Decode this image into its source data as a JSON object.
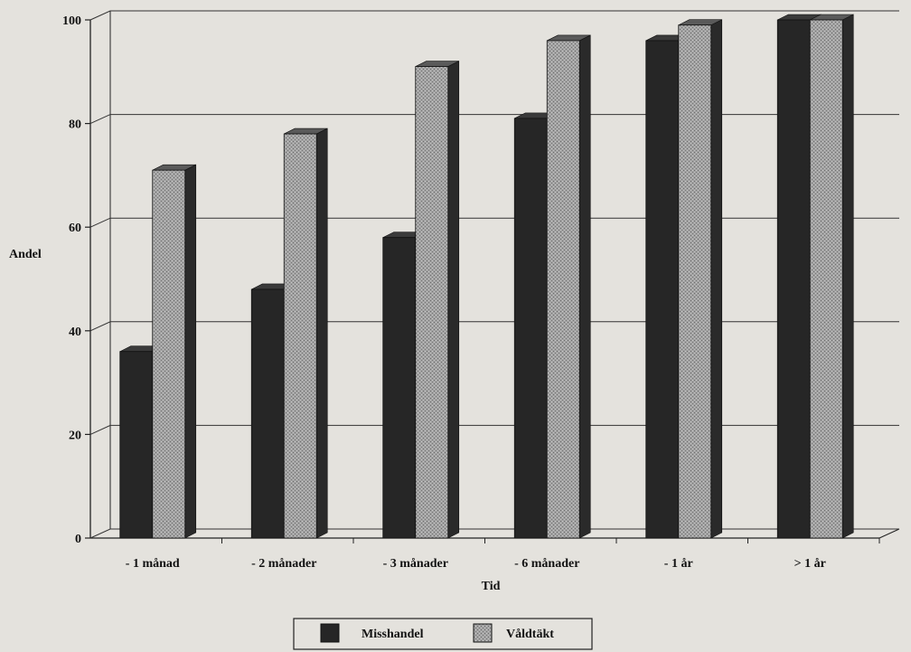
{
  "chart_data": {
    "type": "bar",
    "title": "",
    "xlabel": "Tid",
    "ylabel": "Andel",
    "categories": [
      "- 1 månad",
      "- 2 månader",
      "- 3 månader",
      "- 6 månader",
      "- 1 år",
      "> 1 år"
    ],
    "series": [
      {
        "name": "Misshandel",
        "values": [
          36,
          48,
          58,
          81,
          96,
          100
        ],
        "color": "#262626"
      },
      {
        "name": "Våldtäkt",
        "values": [
          71,
          78,
          91,
          96,
          99,
          100
        ],
        "color": "#9d9d9d"
      }
    ],
    "ylim": [
      0,
      100
    ],
    "yticks": [
      "0",
      "20",
      "40",
      "60",
      "80",
      "100"
    ],
    "grid": true,
    "three_d": true,
    "legend_position": "bottom"
  }
}
